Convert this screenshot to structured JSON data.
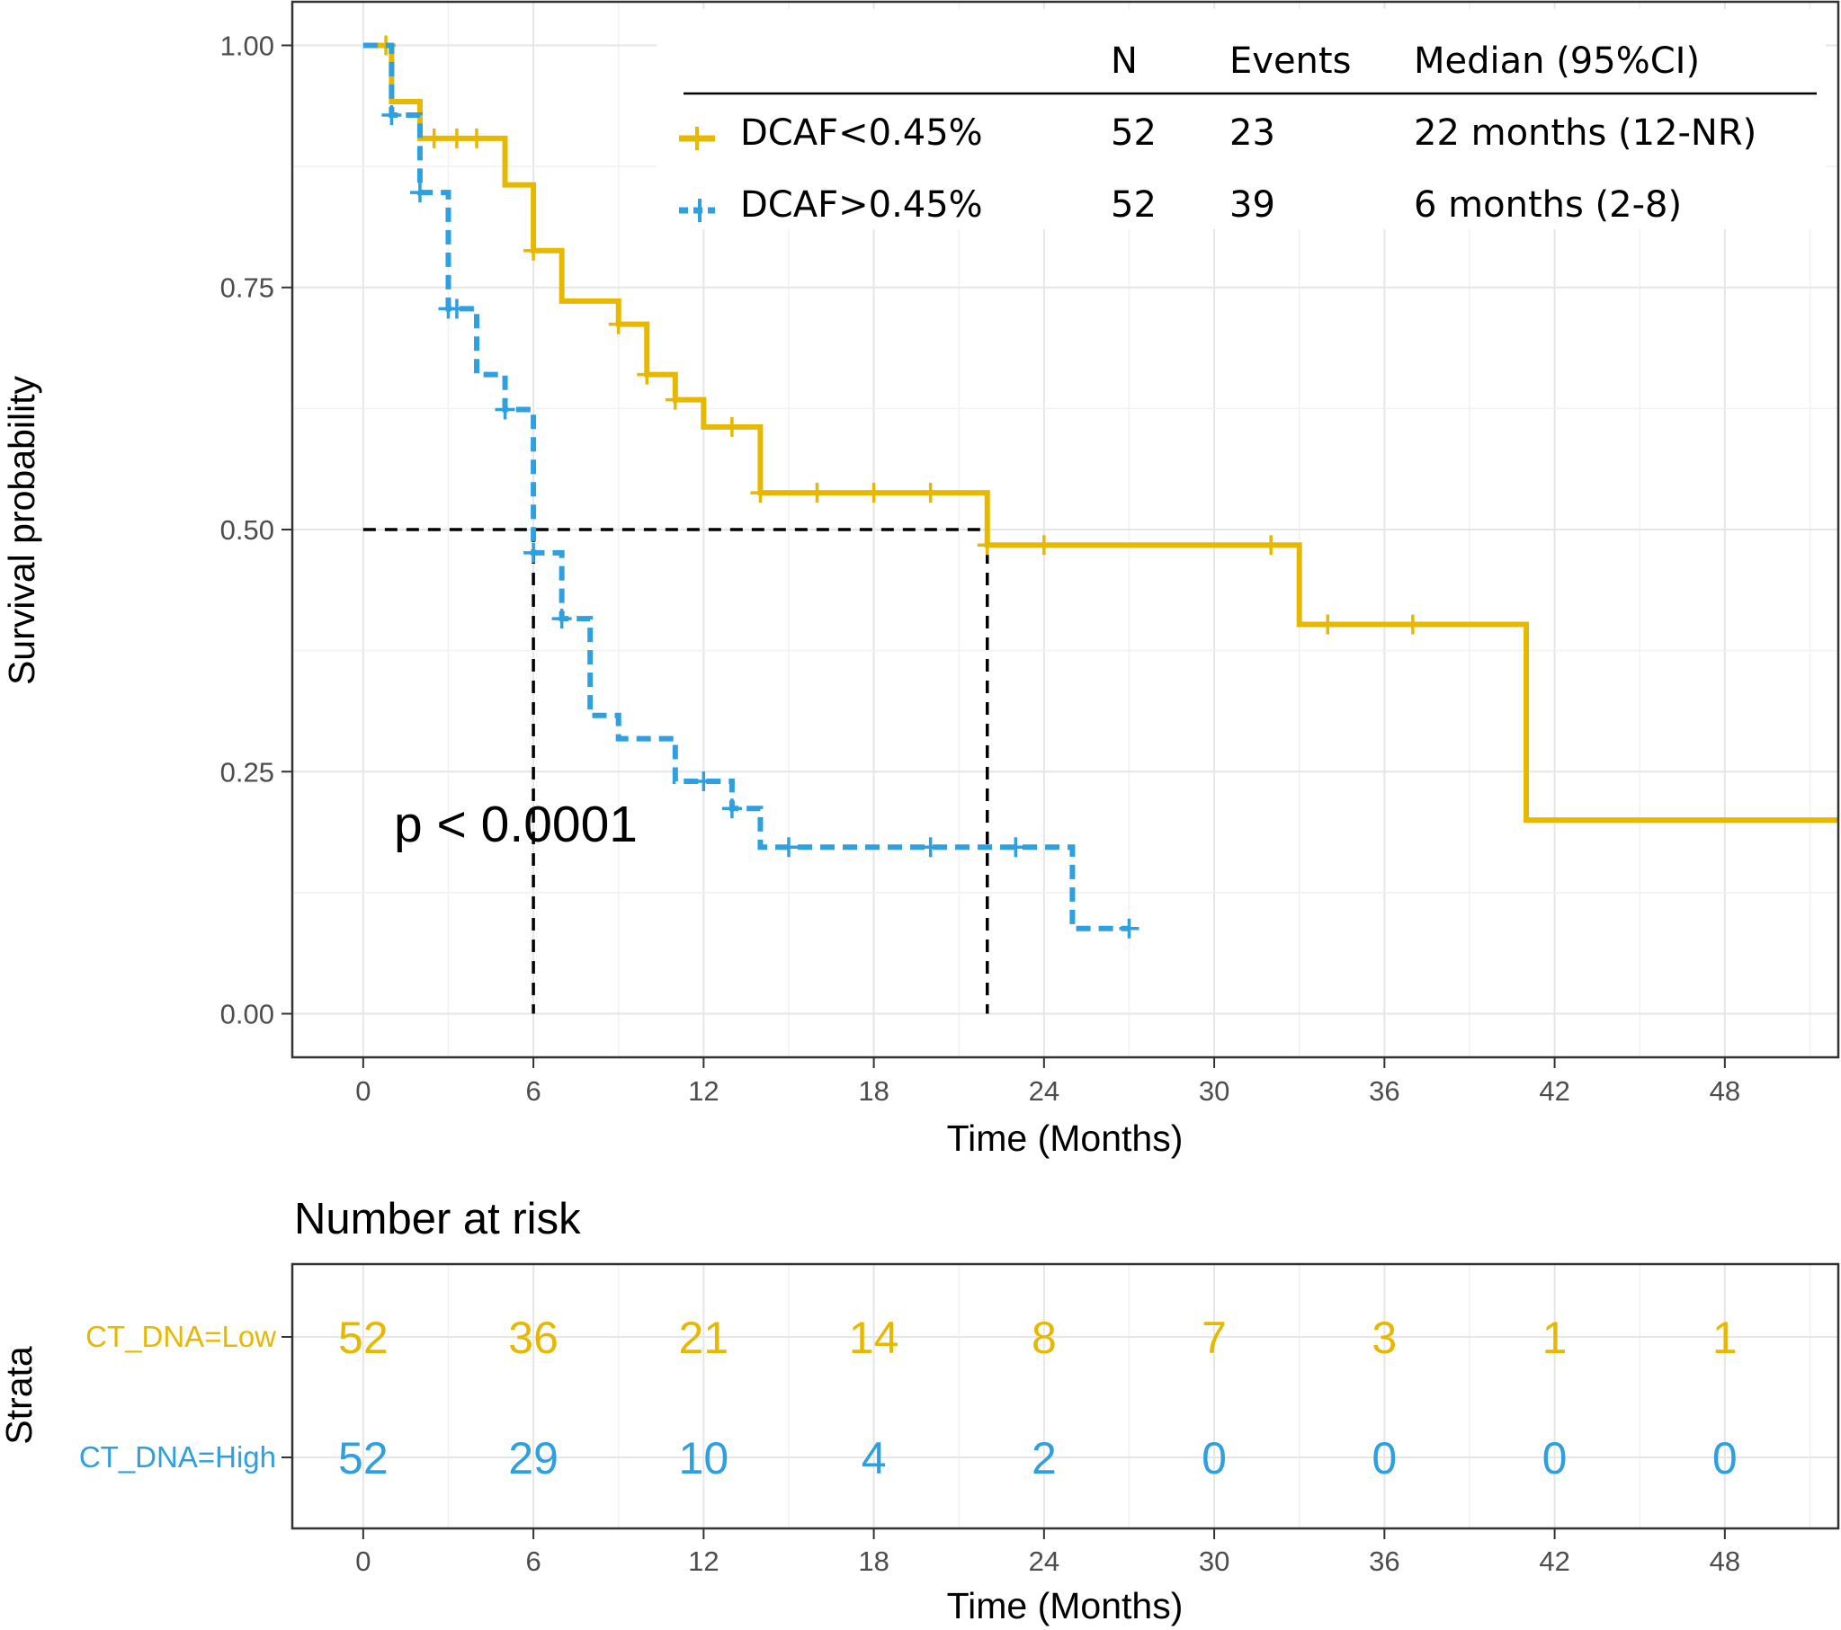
{
  "chart_data": {
    "type": "line",
    "subtype": "kaplan-meier",
    "xlabel": "Time (Months)",
    "ylabel": "Survival probability",
    "xlim": [
      -2.5,
      52
    ],
    "ylim": [
      -0.045,
      1.045
    ],
    "x_ticks": [
      "0",
      "6",
      "12",
      "18",
      "24",
      "30",
      "36",
      "42",
      "48"
    ],
    "x_tick_values": [
      0,
      6,
      12,
      18,
      24,
      30,
      36,
      42,
      48
    ],
    "y_ticks": [
      "0.00",
      "0.25",
      "0.50",
      "0.75",
      "1.00"
    ],
    "y_tick_values": [
      0,
      0.25,
      0.5,
      0.75,
      1
    ],
    "grid": true,
    "pvalue_text": "p < 0.0001",
    "median_reference": {
      "y": 0.5,
      "medians": [
        6,
        22
      ]
    },
    "colors": {
      "low": "#E7B800",
      "high": "#2E9FDF",
      "ref": "#000000"
    },
    "legend": {
      "headers": {
        "n": "N",
        "events": "Events",
        "median": "Median (95%CI)"
      },
      "rows": [
        {
          "label": "DCAF<0.45%",
          "n": "52",
          "events": "23",
          "median": "22 months (12-NR)"
        },
        {
          "label": "DCAF>0.45%",
          "n": "52",
          "events": "39",
          "median": "6 months (2-8)"
        }
      ]
    },
    "series": [
      {
        "name": "DCAF<0.45%",
        "style": "solid",
        "steps": [
          [
            0,
            1.0
          ],
          [
            1,
            0.942
          ],
          [
            2,
            0.904
          ],
          [
            5,
            0.856
          ],
          [
            6,
            0.788
          ],
          [
            7,
            0.736
          ],
          [
            9,
            0.712
          ],
          [
            10,
            0.66
          ],
          [
            11,
            0.634
          ],
          [
            12,
            0.606
          ],
          [
            14,
            0.538
          ],
          [
            22,
            0.484
          ],
          [
            33,
            0.402
          ],
          [
            41,
            0.2
          ],
          [
            52,
            0.2
          ]
        ],
        "censors": [
          [
            0.8,
            1.0
          ],
          [
            2.5,
            0.904
          ],
          [
            3.3,
            0.904
          ],
          [
            4,
            0.904
          ],
          [
            6,
            0.788
          ],
          [
            9,
            0.712
          ],
          [
            10,
            0.66
          ],
          [
            11,
            0.634
          ],
          [
            13,
            0.606
          ],
          [
            14,
            0.538
          ],
          [
            16,
            0.538
          ],
          [
            18,
            0.538
          ],
          [
            20,
            0.538
          ],
          [
            22,
            0.484
          ],
          [
            24,
            0.484
          ],
          [
            32,
            0.484
          ],
          [
            34,
            0.402
          ],
          [
            37,
            0.402
          ]
        ]
      },
      {
        "name": "DCAF>0.45%",
        "style": "dashed",
        "steps": [
          [
            0,
            1.0
          ],
          [
            1,
            0.928
          ],
          [
            2,
            0.848
          ],
          [
            3,
            0.728
          ],
          [
            4,
            0.66
          ],
          [
            5,
            0.624
          ],
          [
            6,
            0.476
          ],
          [
            7,
            0.408
          ],
          [
            8,
            0.308
          ],
          [
            9,
            0.284
          ],
          [
            11,
            0.24
          ],
          [
            13,
            0.212
          ],
          [
            14,
            0.172
          ],
          [
            25,
            0.088
          ],
          [
            27,
            0.088
          ]
        ],
        "censors": [
          [
            1,
            0.928
          ],
          [
            2,
            0.848
          ],
          [
            3,
            0.728
          ],
          [
            3.3,
            0.728
          ],
          [
            5,
            0.624
          ],
          [
            6,
            0.476
          ],
          [
            7,
            0.408
          ],
          [
            12,
            0.24
          ],
          [
            13,
            0.212
          ],
          [
            15,
            0.172
          ],
          [
            20,
            0.172
          ],
          [
            23,
            0.172
          ],
          [
            27,
            0.088
          ]
        ]
      }
    ],
    "risk_table": {
      "title": "Number at risk",
      "ylabel": "Strata",
      "xlabel": "Time (Months)",
      "times": [
        "0",
        "6",
        "12",
        "18",
        "24",
        "30",
        "36",
        "42",
        "48"
      ],
      "strata": [
        {
          "label": "CT_DNA=Low",
          "counts": [
            "52",
            "36",
            "21",
            "14",
            "8",
            "7",
            "3",
            "1",
            "1"
          ]
        },
        {
          "label": "CT_DNA=High",
          "counts": [
            "52",
            "29",
            "10",
            "4",
            "2",
            "0",
            "0",
            "0",
            "0"
          ]
        }
      ]
    }
  }
}
